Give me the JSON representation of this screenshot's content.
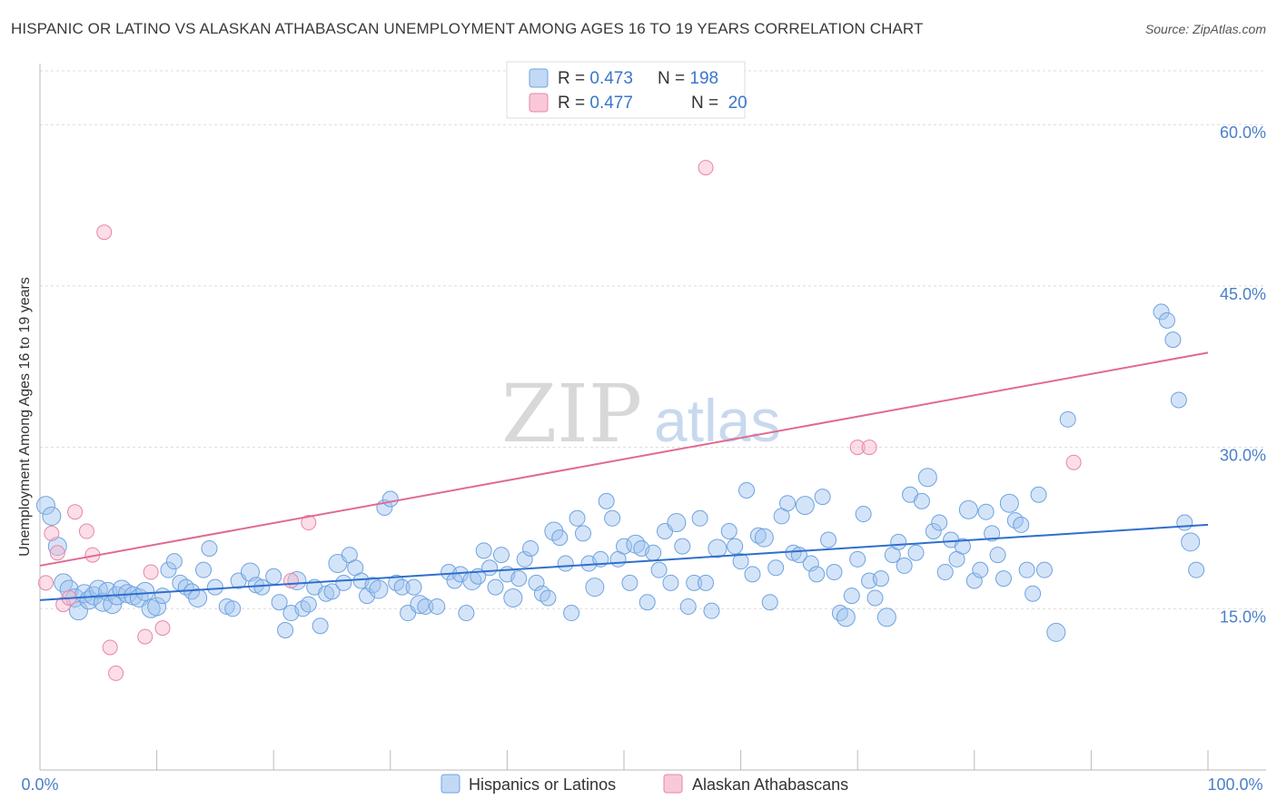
{
  "title": "HISPANIC OR LATINO VS ALASKAN ATHABASCAN UNEMPLOYMENT AMONG AGES 16 TO 19 YEARS CORRELATION CHART",
  "source": "Source: ZipAtlas.com",
  "watermark": {
    "zip": "ZIP",
    "atlas": "atlas"
  },
  "legend_top": [
    {
      "r_label": "R = ",
      "r_value": "0.473",
      "n_label": "N = ",
      "n_value": "198",
      "color": "#6fa3e0",
      "fill": "#c2d9f5"
    },
    {
      "r_label": "R = ",
      "r_value": "0.477",
      "n_label": "N = ",
      "n_value": " 20",
      "color": "#e886a6",
      "fill": "#f8c8d8"
    }
  ],
  "colors": {
    "blue": "#4a86d4",
    "blue_line": "#2f6fcc",
    "pink": "#e06a93",
    "pink_line": "#e06a93",
    "axis_text": "#4a7fc9",
    "grid": "#dcdcdc"
  },
  "chart_data": {
    "type": "scatter",
    "title": "HISPANIC OR LATINO VS ALASKAN ATHABASCAN UNEMPLOYMENT AMONG AGES 16 TO 19 YEARS CORRELATION CHART",
    "xlabel": "",
    "ylabel": "Unemployment Among Ages 16 to 19 years",
    "xlim": [
      0,
      100
    ],
    "ylim": [
      0,
      65
    ],
    "x_tick_labels": [
      "0.0%",
      "100.0%"
    ],
    "y_ticks": [
      15,
      30,
      45,
      60
    ],
    "y_tick_labels": [
      "15.0%",
      "30.0%",
      "45.0%",
      "60.0%"
    ],
    "grid": true,
    "legend_position": "bottom-center",
    "series": [
      {
        "name": "Hispanics or Latinos",
        "R": 0.473,
        "N": 198,
        "trend": {
          "x": [
            0,
            100
          ],
          "y": [
            15.8,
            22.8
          ]
        },
        "points": [
          [
            0.5,
            24.6
          ],
          [
            1.0,
            23.6
          ],
          [
            1.5,
            20.8
          ],
          [
            2.0,
            17.4
          ],
          [
            2.5,
            16.8
          ],
          [
            3.0,
            16.0
          ],
          [
            3.3,
            14.8
          ],
          [
            3.8,
            16.4
          ],
          [
            4.2,
            15.8
          ],
          [
            4.6,
            16.2
          ],
          [
            5.0,
            16.8
          ],
          [
            5.4,
            15.6
          ],
          [
            5.8,
            16.6
          ],
          [
            6.2,
            15.4
          ],
          [
            6.6,
            16.2
          ],
          [
            7.0,
            16.8
          ],
          [
            7.5,
            16.4
          ],
          [
            8.0,
            16.2
          ],
          [
            8.5,
            16.0
          ],
          [
            9.0,
            16.6
          ],
          [
            9.5,
            15.0
          ],
          [
            10.0,
            15.2
          ],
          [
            10.5,
            16.2
          ],
          [
            11.0,
            18.6
          ],
          [
            11.5,
            19.4
          ],
          [
            12.0,
            17.4
          ],
          [
            12.5,
            17.0
          ],
          [
            13.0,
            16.6
          ],
          [
            13.5,
            16.0
          ],
          [
            14.0,
            18.6
          ],
          [
            14.5,
            20.6
          ],
          [
            15.0,
            17.0
          ],
          [
            16.0,
            15.2
          ],
          [
            16.5,
            15.0
          ],
          [
            17.0,
            17.6
          ],
          [
            18.0,
            18.4
          ],
          [
            18.5,
            17.2
          ],
          [
            19.0,
            17.0
          ],
          [
            20.0,
            18.0
          ],
          [
            20.5,
            15.6
          ],
          [
            21.0,
            13.0
          ],
          [
            21.5,
            14.6
          ],
          [
            22.0,
            17.6
          ],
          [
            22.5,
            15.0
          ],
          [
            23.0,
            15.4
          ],
          [
            23.5,
            17.0
          ],
          [
            24.0,
            13.4
          ],
          [
            24.5,
            16.4
          ],
          [
            25.0,
            16.6
          ],
          [
            25.5,
            19.2
          ],
          [
            26.0,
            17.4
          ],
          [
            26.5,
            20.0
          ],
          [
            27.0,
            18.8
          ],
          [
            27.5,
            17.6
          ],
          [
            28.0,
            16.2
          ],
          [
            28.5,
            17.2
          ],
          [
            29.0,
            16.8
          ],
          [
            29.5,
            24.4
          ],
          [
            30.0,
            25.2
          ],
          [
            30.5,
            17.4
          ],
          [
            31.0,
            17.0
          ],
          [
            31.5,
            14.6
          ],
          [
            32.0,
            17.0
          ],
          [
            32.5,
            15.4
          ],
          [
            33.0,
            15.2
          ],
          [
            34.0,
            15.2
          ],
          [
            35.0,
            18.4
          ],
          [
            35.5,
            17.6
          ],
          [
            36.0,
            18.2
          ],
          [
            36.5,
            14.6
          ],
          [
            37.0,
            17.6
          ],
          [
            37.5,
            18.0
          ],
          [
            38.0,
            20.4
          ],
          [
            38.5,
            18.8
          ],
          [
            39.0,
            17.0
          ],
          [
            39.5,
            20.0
          ],
          [
            40.0,
            18.2
          ],
          [
            40.5,
            16.0
          ],
          [
            41.0,
            17.8
          ],
          [
            41.5,
            19.6
          ],
          [
            42.0,
            20.6
          ],
          [
            42.5,
            17.4
          ],
          [
            43.0,
            16.4
          ],
          [
            43.5,
            16.0
          ],
          [
            44.0,
            22.2
          ],
          [
            44.5,
            21.6
          ],
          [
            45.0,
            19.2
          ],
          [
            45.5,
            14.6
          ],
          [
            46.0,
            23.4
          ],
          [
            46.5,
            22.0
          ],
          [
            47.0,
            19.2
          ],
          [
            47.5,
            17.0
          ],
          [
            48.0,
            19.6
          ],
          [
            48.5,
            25.0
          ],
          [
            49.0,
            23.4
          ],
          [
            49.5,
            19.6
          ],
          [
            50.0,
            20.8
          ],
          [
            50.5,
            17.4
          ],
          [
            51.0,
            21.0
          ],
          [
            51.5,
            20.6
          ],
          [
            52.0,
            15.6
          ],
          [
            52.5,
            20.2
          ],
          [
            53.0,
            18.6
          ],
          [
            53.5,
            22.2
          ],
          [
            54.0,
            17.4
          ],
          [
            54.5,
            23.0
          ],
          [
            55.0,
            20.8
          ],
          [
            55.5,
            15.2
          ],
          [
            56.0,
            17.4
          ],
          [
            56.5,
            23.4
          ],
          [
            57.0,
            17.4
          ],
          [
            57.5,
            14.8
          ],
          [
            58.0,
            20.6
          ],
          [
            59.0,
            22.2
          ],
          [
            59.5,
            20.8
          ],
          [
            60.0,
            19.4
          ],
          [
            60.5,
            26.0
          ],
          [
            61.0,
            18.2
          ],
          [
            61.5,
            21.8
          ],
          [
            62.0,
            21.6
          ],
          [
            62.5,
            15.6
          ],
          [
            63.0,
            18.8
          ],
          [
            63.5,
            23.6
          ],
          [
            64.0,
            24.8
          ],
          [
            64.5,
            20.2
          ],
          [
            65.0,
            20.0
          ],
          [
            65.5,
            24.6
          ],
          [
            66.0,
            19.2
          ],
          [
            66.5,
            18.2
          ],
          [
            67.0,
            25.4
          ],
          [
            67.5,
            21.4
          ],
          [
            68.0,
            18.4
          ],
          [
            68.5,
            14.6
          ],
          [
            69.0,
            14.2
          ],
          [
            69.5,
            16.2
          ],
          [
            70.0,
            19.6
          ],
          [
            70.5,
            23.8
          ],
          [
            71.0,
            17.6
          ],
          [
            71.5,
            16.0
          ],
          [
            72.0,
            17.8
          ],
          [
            72.5,
            14.2
          ],
          [
            73.0,
            20.0
          ],
          [
            73.5,
            21.2
          ],
          [
            74.0,
            19.0
          ],
          [
            74.5,
            25.6
          ],
          [
            75.0,
            20.2
          ],
          [
            75.5,
            25.0
          ],
          [
            76.0,
            27.2
          ],
          [
            76.5,
            22.2
          ],
          [
            77.0,
            23.0
          ],
          [
            77.5,
            18.4
          ],
          [
            78.0,
            21.4
          ],
          [
            78.5,
            19.6
          ],
          [
            79.0,
            20.8
          ],
          [
            79.5,
            24.2
          ],
          [
            80.0,
            17.6
          ],
          [
            80.5,
            18.6
          ],
          [
            81.0,
            24.0
          ],
          [
            81.5,
            22.0
          ],
          [
            82.0,
            20.0
          ],
          [
            82.5,
            17.8
          ],
          [
            83.0,
            24.8
          ],
          [
            83.5,
            23.2
          ],
          [
            84.0,
            22.8
          ],
          [
            84.5,
            18.6
          ],
          [
            85.0,
            16.4
          ],
          [
            85.5,
            25.6
          ],
          [
            86.0,
            18.6
          ],
          [
            87.0,
            12.8
          ],
          [
            88.0,
            32.6
          ],
          [
            96.0,
            42.6
          ],
          [
            96.5,
            41.8
          ],
          [
            97.0,
            40.0
          ],
          [
            97.5,
            34.4
          ],
          [
            98.0,
            23.0
          ],
          [
            98.5,
            21.2
          ],
          [
            99.0,
            18.6
          ]
        ]
      },
      {
        "name": "Alaskan Athabascans",
        "R": 0.477,
        "N": 20,
        "trend": {
          "x": [
            0,
            100
          ],
          "y": [
            19.0,
            38.8
          ]
        },
        "points": [
          [
            0.5,
            17.4
          ],
          [
            1.0,
            22.0
          ],
          [
            1.5,
            20.2
          ],
          [
            2.0,
            15.4
          ],
          [
            2.5,
            16.0
          ],
          [
            3.0,
            24.0
          ],
          [
            4.0,
            22.2
          ],
          [
            4.5,
            20.0
          ],
          [
            5.5,
            50.0
          ],
          [
            6.0,
            11.4
          ],
          [
            6.5,
            9.0
          ],
          [
            9.0,
            12.4
          ],
          [
            9.5,
            18.4
          ],
          [
            10.5,
            13.2
          ],
          [
            21.5,
            17.6
          ],
          [
            23.0,
            23.0
          ],
          [
            57.0,
            56.0
          ],
          [
            70.0,
            30.0
          ],
          [
            71.0,
            30.0
          ],
          [
            88.5,
            28.6
          ]
        ]
      }
    ]
  }
}
